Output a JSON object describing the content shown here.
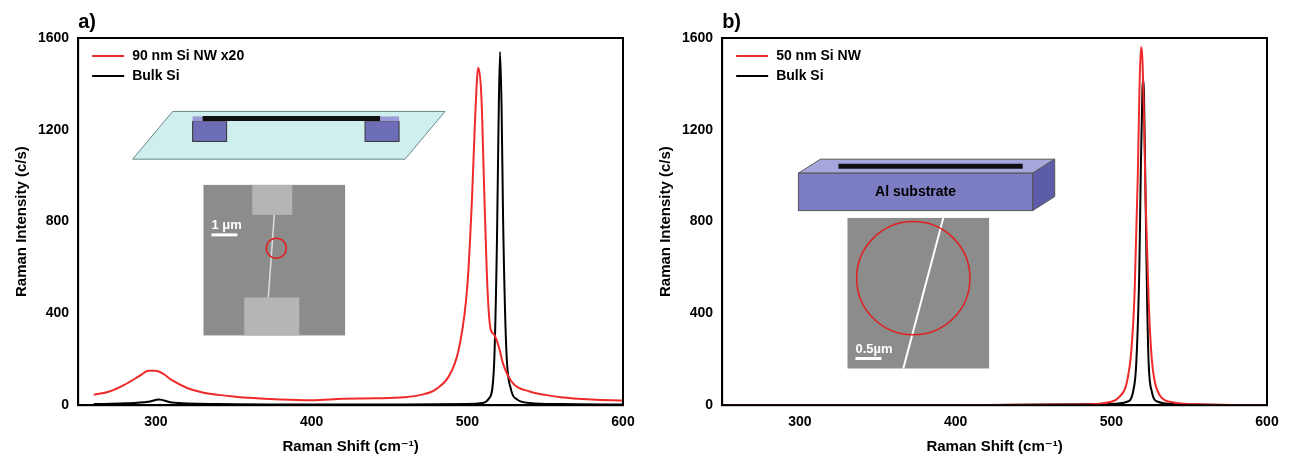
{
  "chart_data": [
    {
      "type": "line",
      "panel": "a)",
      "x_label": "Raman Shift (cm⁻¹)",
      "y_label": "Raman Intensity (c/s)",
      "xlim": [
        250,
        600
      ],
      "xticks": [
        300,
        400,
        500,
        600
      ],
      "ylim": [
        0,
        1600
      ],
      "yticks": [
        0,
        400,
        800,
        1200,
        1600
      ],
      "grid": false,
      "legend": "top-left",
      "inset_labels": {
        "scale_bar": "1 μm"
      },
      "series": [
        {
          "name": "90 nm Si NW x20",
          "color": "#ee2a2a",
          "x": [
            260,
            270,
            280,
            290,
            295,
            300,
            305,
            310,
            320,
            330,
            340,
            350,
            360,
            380,
            400,
            420,
            440,
            460,
            470,
            480,
            490,
            495,
            500,
            503,
            505,
            507,
            509,
            511,
            513,
            515,
            517,
            520,
            523,
            526,
            530,
            540,
            550,
            560,
            580,
            600
          ],
          "values": [
            45,
            60,
            90,
            130,
            150,
            150,
            135,
            110,
            75,
            55,
            45,
            38,
            32,
            25,
            22,
            28,
            30,
            35,
            45,
            70,
            150,
            260,
            520,
            900,
            1250,
            1470,
            1350,
            900,
            500,
            330,
            310,
            260,
            180,
            130,
            90,
            60,
            45,
            35,
            25,
            20
          ]
        },
        {
          "name": "Bulk Si",
          "color": "#000000",
          "x": [
            260,
            280,
            295,
            302,
            310,
            340,
            400,
            460,
            500,
            510,
            514,
            517,
            519,
            520,
            521,
            522,
            523,
            525,
            528,
            532,
            540,
            560,
            600
          ],
          "values": [
            5,
            8,
            15,
            25,
            12,
            5,
            3,
            3,
            5,
            10,
            30,
            150,
            700,
            1200,
            1540,
            1300,
            800,
            250,
            70,
            25,
            10,
            5,
            3
          ]
        }
      ]
    },
    {
      "type": "line",
      "panel": "b)",
      "x_label": "Raman Shift (cm⁻¹)",
      "y_label": "Raman Intensity (c/s)",
      "xlim": [
        250,
        600
      ],
      "xticks": [
        300,
        400,
        500,
        600
      ],
      "ylim": [
        0,
        1600
      ],
      "yticks": [
        0,
        400,
        800,
        1200,
        1600
      ],
      "grid": false,
      "legend": "top-left",
      "inset_labels": {
        "substrate": "Al substrate",
        "scale_bar": "0.5µm"
      },
      "series": [
        {
          "name": "50 nm Si NW",
          "color": "#ee2a2a",
          "x": [
            250,
            300,
            400,
            480,
            500,
            505,
            510,
            513,
            515,
            517,
            518,
            519,
            520,
            521,
            522,
            524,
            526,
            528,
            532,
            540,
            560,
            600
          ],
          "values": [
            0,
            0,
            0,
            3,
            15,
            35,
            100,
            250,
            500,
            1000,
            1350,
            1560,
            1500,
            1250,
            900,
            450,
            200,
            100,
            35,
            12,
            3,
            0
          ]
        },
        {
          "name": "Bulk Si",
          "color": "#000000",
          "x": [
            250,
            400,
            500,
            510,
            514,
            516,
            518,
            519,
            520,
            520.5,
            521,
            522,
            523,
            524,
            526,
            530,
            540,
            600
          ],
          "values": [
            0,
            0,
            5,
            15,
            60,
            180,
            600,
            1050,
            1380,
            1420,
            1350,
            900,
            450,
            180,
            60,
            15,
            5,
            0
          ]
        }
      ]
    }
  ]
}
